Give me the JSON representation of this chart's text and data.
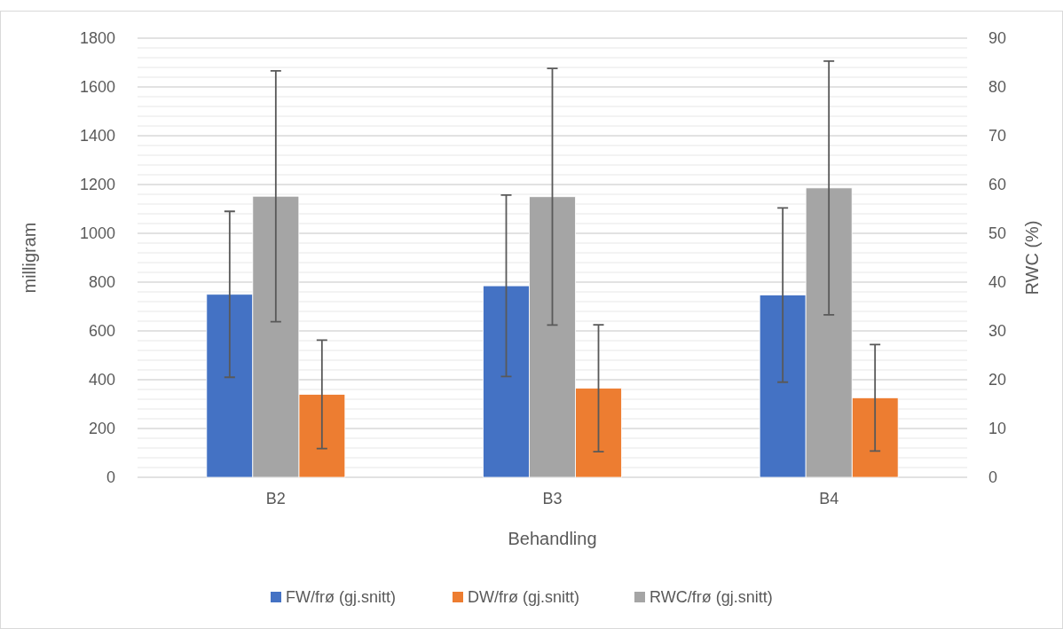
{
  "chart_data": {
    "type": "bar",
    "xlabel": "Behandling",
    "ylabel": "milligram",
    "y2label": "RWC (%)",
    "categories": [
      "B2",
      "B3",
      "B4"
    ],
    "series": [
      {
        "name": "FW/frø (gj.snitt)",
        "color": "#4472c4",
        "values": [
          750,
          785,
          747
        ],
        "errors": [
          340,
          372,
          357
        ]
      },
      {
        "name": "DW/frø (gj.snitt)",
        "color": "#ed7d31",
        "values": [
          340,
          365,
          326
        ],
        "errors": [
          222,
          260,
          218
        ]
      },
      {
        "name": "RWC/frø (gj.snitt)",
        "color": "#a5a5a5",
        "axis": "y2",
        "values": [
          57.6,
          57.5,
          59.3
        ],
        "errors": [
          25.7,
          26.3,
          26
        ]
      }
    ],
    "ylim": [
      0,
      1800
    ],
    "yticks": [
      0,
      {
        "value": 40,
        "label": null
      },
      {
        "value": 80,
        "label": null
      },
      {
        "value": 120,
        "label": null
      },
      {
        "value": 160,
        "label": null
      },
      200,
      {
        "value": 240,
        "label": null
      },
      {
        "value": 280,
        "label": null
      },
      {
        "value": 320,
        "label": null
      },
      {
        "value": 360,
        "label": null
      },
      400,
      {
        "value": 440,
        "label": null
      },
      {
        "value": 480,
        "label": null
      },
      {
        "value": 520,
        "label": null
      },
      {
        "value": 560,
        "label": null
      },
      600,
      {
        "value": 640,
        "label": null
      },
      {
        "value": 680,
        "label": null
      },
      {
        "value": 720,
        "label": null
      },
      {
        "value": 760,
        "label": null
      },
      800,
      {
        "value": 840,
        "label": null
      },
      {
        "value": 880,
        "label": null
      },
      {
        "value": 920,
        "label": null
      },
      {
        "value": 960,
        "label": null
      },
      1000,
      {
        "value": 1040,
        "label": null
      },
      {
        "value": 1080,
        "label": null
      },
      {
        "value": 1120,
        "label": null
      },
      {
        "value": 1160,
        "label": null
      },
      1200,
      {
        "value": 1240,
        "label": null
      },
      {
        "value": 1280,
        "label": null
      },
      {
        "value": 1320,
        "label": null
      },
      {
        "value": 1360,
        "label": null
      },
      1400,
      {
        "value": 1440,
        "label": null
      },
      {
        "value": 1480,
        "label": null
      },
      {
        "value": 1520,
        "label": null
      },
      {
        "value": 1560,
        "label": null
      },
      1600,
      {
        "value": 1640,
        "label": null
      },
      {
        "value": 1680,
        "label": null
      },
      {
        "value": 1720,
        "label": null
      },
      {
        "value": 1760,
        "label": null
      },
      1800
    ],
    "y2lim": [
      0,
      90
    ],
    "y2ticks": [
      0,
      10,
      20,
      30,
      40,
      50,
      60,
      70,
      80,
      90
    ],
    "grid": "y",
    "legend": "bottom"
  }
}
